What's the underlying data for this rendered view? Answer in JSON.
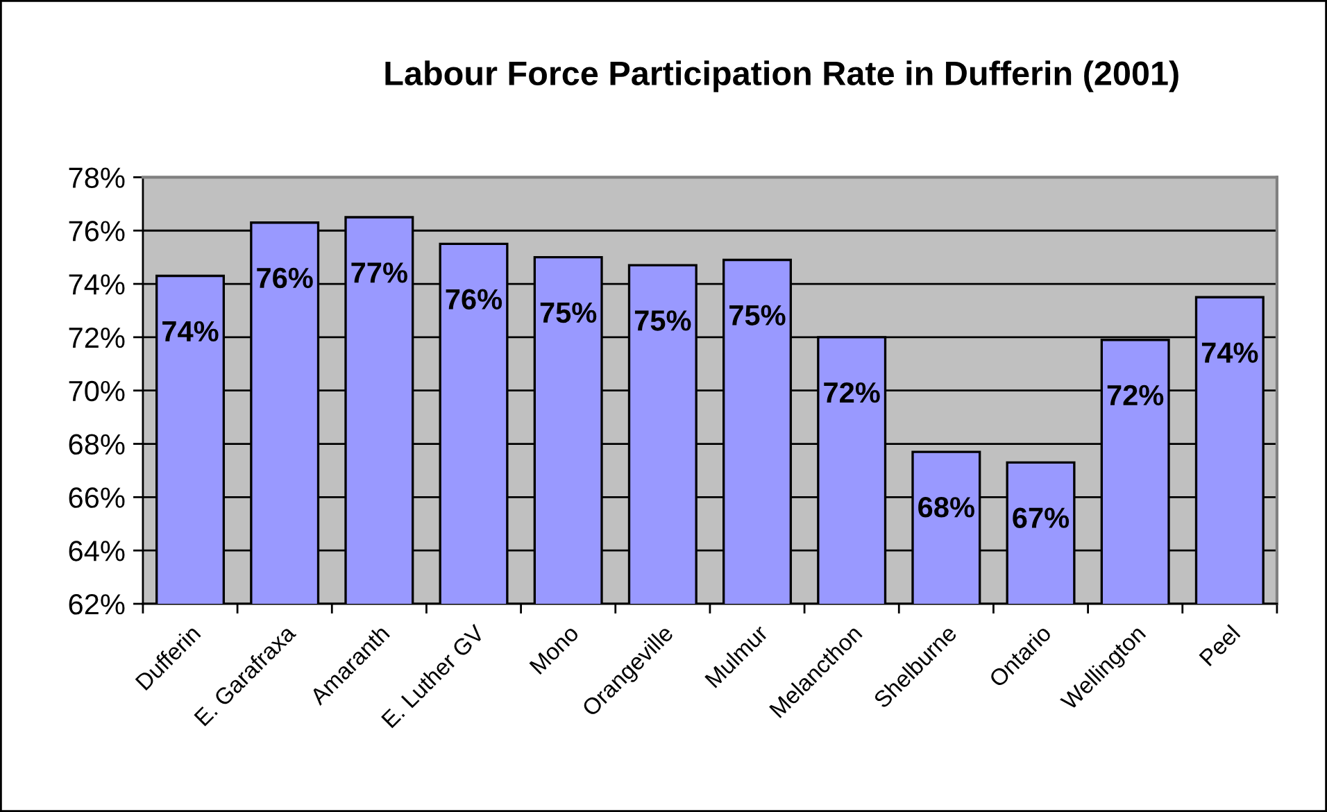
{
  "chart_data": {
    "type": "bar",
    "title": "Labour Force Participation Rate in Dufferin (2001)",
    "categories": [
      "Dufferin",
      "E. Garafraxa",
      "Amaranth",
      "E. Luther GV",
      "Mono",
      "Orangeville",
      "Mulmur",
      "Melancthon",
      "Shelburne",
      "Ontario",
      "Wellington",
      "Peel"
    ],
    "values": [
      74.3,
      76.3,
      76.5,
      75.5,
      75.0,
      74.7,
      74.9,
      72.0,
      67.7,
      67.3,
      71.9,
      73.5
    ],
    "value_labels": [
      "74%",
      "76%",
      "77%",
      "76%",
      "75%",
      "75%",
      "75%",
      "72%",
      "68%",
      "67%",
      "72%",
      "74%"
    ],
    "color": "#9999ff",
    "ylim": [
      62,
      78
    ],
    "yticks": [
      {
        "value": 62,
        "label": "62%"
      },
      {
        "value": 64,
        "label": "64%"
      },
      {
        "value": 66,
        "label": "66%"
      },
      {
        "value": 68,
        "label": "68%"
      },
      {
        "value": 70,
        "label": "70%"
      },
      {
        "value": 72,
        "label": "72%"
      },
      {
        "value": 74,
        "label": "74%"
      },
      {
        "value": 76,
        "label": "76%"
      },
      {
        "value": 78,
        "label": "78%"
      }
    ],
    "grid": "y"
  }
}
